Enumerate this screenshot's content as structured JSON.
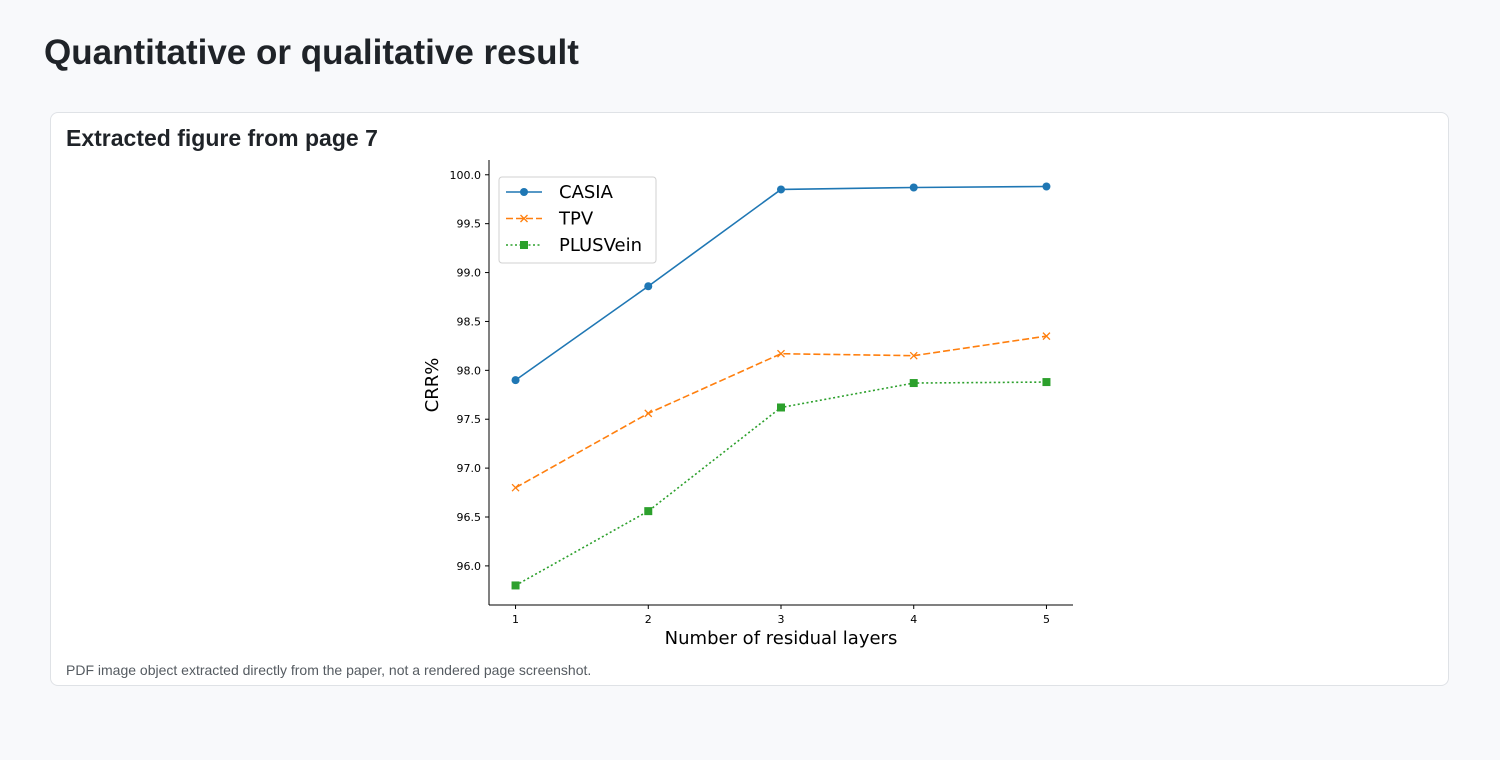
{
  "page": {
    "title": "Quantitative or qualitative result"
  },
  "figure": {
    "heading": "Extracted figure from page 7",
    "caption": "PDF image object extracted directly from the paper, not a rendered page screenshot."
  },
  "chart_data": {
    "type": "line",
    "title": "",
    "xlabel": "Number of residual layers",
    "ylabel": "CRR%",
    "x": [
      1,
      2,
      3,
      4,
      5
    ],
    "xticks": [
      "1",
      "2",
      "3",
      "4",
      "5"
    ],
    "yticks": [
      "96.0",
      "96.5",
      "97.0",
      "97.5",
      "98.0",
      "98.5",
      "99.0",
      "99.5",
      "100.0"
    ],
    "ylim": [
      95.6,
      100.1
    ],
    "grid": false,
    "legend_position": "top-left",
    "series": [
      {
        "name": "CASIA",
        "values": [
          97.9,
          98.86,
          99.85,
          99.87,
          99.88
        ],
        "color": "#1f77b4",
        "line_style": "solid",
        "marker": "circle"
      },
      {
        "name": "TPV",
        "values": [
          96.8,
          97.56,
          98.17,
          98.15,
          98.35
        ],
        "color": "#ff7f0e",
        "line_style": "dashed",
        "marker": "x"
      },
      {
        "name": "PLUSVein",
        "values": [
          95.8,
          96.56,
          97.62,
          97.87,
          97.88
        ],
        "color": "#2ca02c",
        "line_style": "dotted",
        "marker": "square"
      }
    ]
  }
}
